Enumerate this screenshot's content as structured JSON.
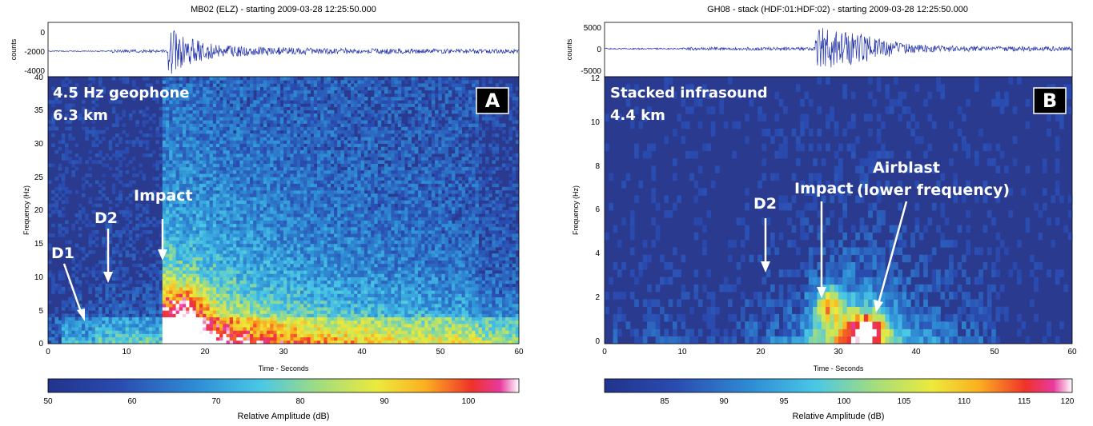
{
  "chart_data": [
    {
      "type": "heatmap",
      "title": "MB02 (ELZ) - starting 2009-03-28 12:25:50.000",
      "panel_label": "A",
      "sensor_label": "4.5 Hz geophone",
      "distance_label": "6.3 km",
      "xlabel": "Time - Seconds",
      "ylabel": "Frequency (Hz)",
      "xlim": [
        0,
        60
      ],
      "ylim": [
        0,
        40
      ],
      "xticks": [
        "0",
        "10",
        "20",
        "30",
        "40",
        "50",
        "60"
      ],
      "yticks": [
        "0",
        "5",
        "10",
        "15",
        "20",
        "25",
        "30",
        "35",
        "40"
      ],
      "waveform": {
        "ylabel": "counts",
        "ylim": [
          -4500,
          2000
        ],
        "yticks": [
          "0",
          "-2000",
          "-4000"
        ],
        "onset_s": 15.3
      },
      "colorbar": {
        "label": "Relative Amplitude (dB)",
        "range": [
          50,
          106
        ],
        "ticks": [
          "50",
          "60",
          "70",
          "80",
          "90",
          "100"
        ]
      },
      "annotations": [
        {
          "text": "D1",
          "time_s": 4.5,
          "freq_hz": 3
        },
        {
          "text": "D2",
          "time_s": 7.8,
          "freq_hz": 9
        },
        {
          "text": "Impact",
          "time_s": 15,
          "freq_hz": 12.5
        }
      ]
    },
    {
      "type": "heatmap",
      "title": "GH08 - stack (HDF:01:HDF:02) - starting 2009-03-28 12:25:50.000",
      "panel_label": "B",
      "sensor_label": "Stacked infrasound",
      "distance_label": "4.4 km",
      "xlabel": "Time - Seconds",
      "ylabel": "Frequency (Hz)",
      "xlim": [
        0,
        60
      ],
      "ylim": [
        0,
        12
      ],
      "xticks": [
        "0",
        "10",
        "20",
        "30",
        "40",
        "50",
        "60"
      ],
      "yticks": [
        "0",
        "2",
        "4",
        "6",
        "8",
        "10",
        "12"
      ],
      "waveform": {
        "ylabel": "counts",
        "ylim": [
          -6500,
          6500
        ],
        "yticks": [
          "5000",
          "0",
          "-5000"
        ],
        "onset_s": 27
      },
      "colorbar": {
        "label": "Relative Amplitude (dB)",
        "range": [
          81,
          120
        ],
        "ticks": [
          "85",
          "90",
          "95",
          "100",
          "105",
          "110",
          "115",
          "120"
        ]
      },
      "annotations": [
        {
          "text": "D2",
          "time_s": 20.5,
          "freq_hz": 3
        },
        {
          "text": "Impact",
          "time_s": 28,
          "freq_hz": 2
        },
        {
          "text": "Airblast",
          "time_s": 34.5,
          "freq_hz": 1.3
        },
        {
          "text": "(lower frequency)",
          "time_s": 34.5,
          "freq_hz": 1.3
        }
      ]
    }
  ]
}
